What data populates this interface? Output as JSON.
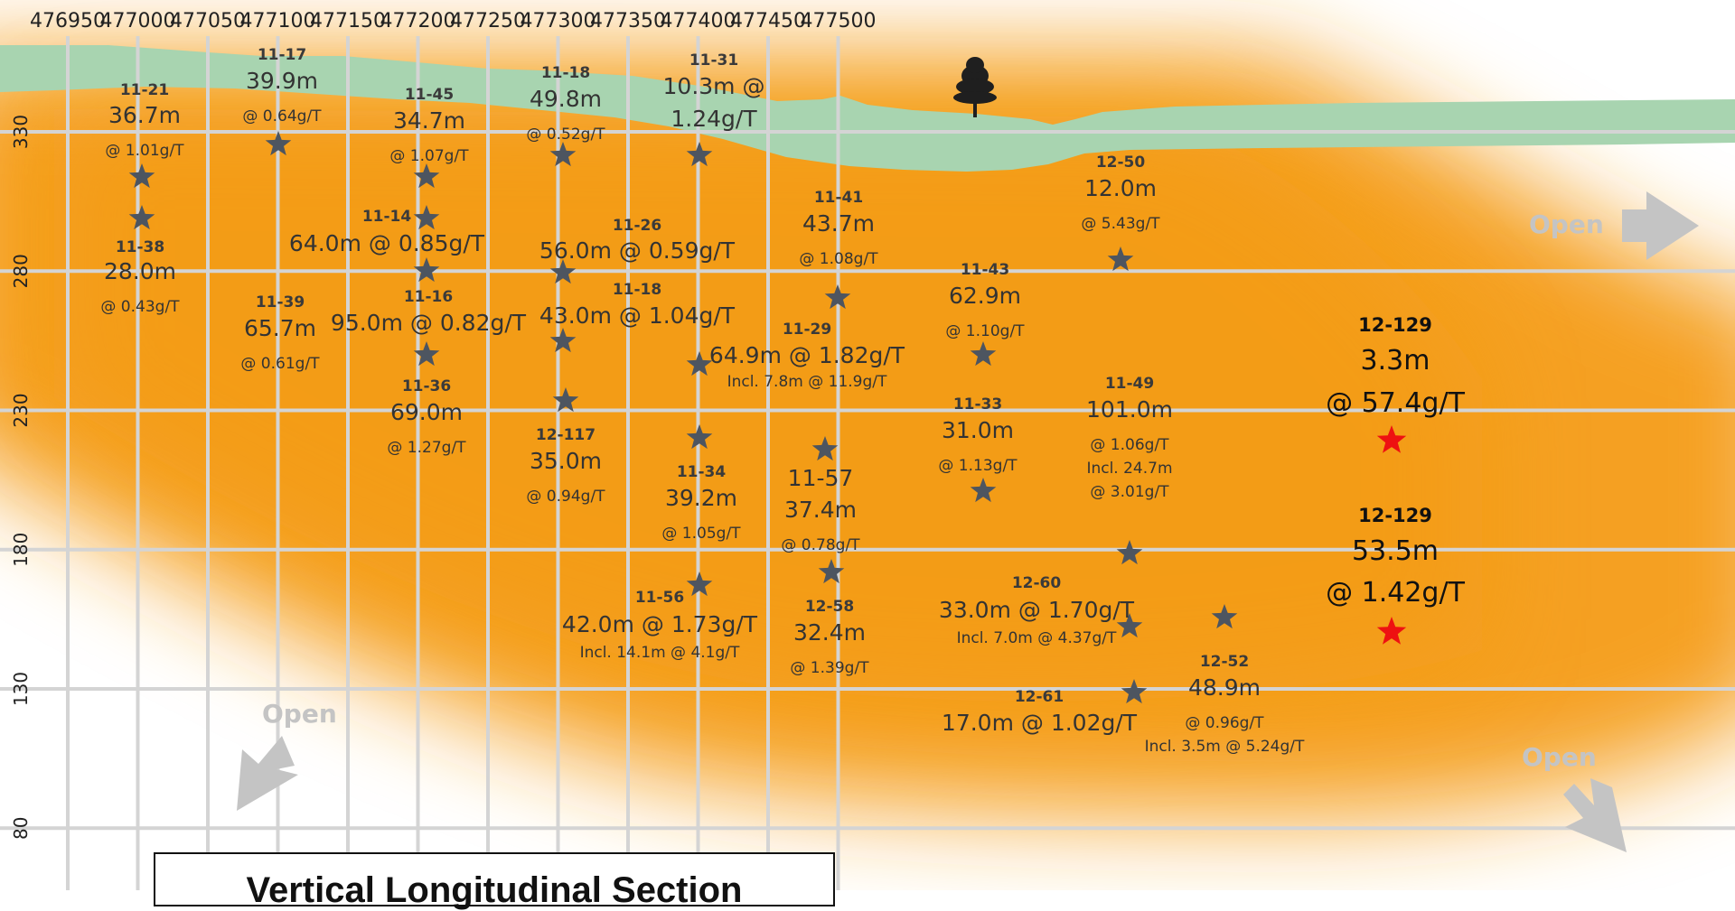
{
  "title": "Vertical Longitudinal Section",
  "x_axis": {
    "ticks": [
      476950,
      477000,
      477050,
      477100,
      477150,
      477200,
      477250,
      477300,
      477350,
      477400,
      477450,
      477500
    ]
  },
  "y_axis": {
    "ticks": [
      330,
      280,
      230,
      180,
      130,
      80
    ]
  },
  "open_label": "Open",
  "colors": {
    "mineralized_zone": "#f5a020",
    "overburden": "#a8d4b0",
    "grid": "#d4d4d4",
    "star": "#4d5560",
    "new_intercept_star": "#ee1111"
  },
  "intercepts": [
    {
      "id": "11-21",
      "lines": [
        "36.7m",
        "@ 1.01g/T"
      ]
    },
    {
      "id": "11-38",
      "lines": [
        "28.0m",
        "@ 0.43g/T"
      ]
    },
    {
      "id": "11-17",
      "lines": [
        "39.9m",
        "@ 0.64g/T"
      ]
    },
    {
      "id": "11-39",
      "lines": [
        "65.7m",
        "@ 0.61g/T"
      ]
    },
    {
      "id": "11-45",
      "lines": [
        "34.7m",
        "@ 1.07g/T"
      ]
    },
    {
      "id": "11-14",
      "lines": [
        "64.0m @ 0.85g/T"
      ]
    },
    {
      "id": "11-16",
      "lines": [
        "95.0m @ 0.82g/T"
      ]
    },
    {
      "id": "11-36",
      "lines": [
        "69.0m",
        "@ 1.27g/T"
      ]
    },
    {
      "id": "11-18",
      "lines": [
        "49.8m",
        "@ 0.52g/T"
      ]
    },
    {
      "id": "11-31",
      "lines": [
        "10.3m @",
        "1.24g/T"
      ]
    },
    {
      "id": "11-26",
      "lines": [
        "56.0m @ 0.59g/T"
      ]
    },
    {
      "id": "11-18",
      "lines": [
        "43.0m @ 1.04g/T"
      ]
    },
    {
      "id": "12-117",
      "lines": [
        "35.0m",
        "@ 0.94g/T"
      ]
    },
    {
      "id": "11-34",
      "lines": [
        "39.2m",
        "@ 1.05g/T"
      ]
    },
    {
      "id": "11-56",
      "lines": [
        "42.0m @ 1.73g/T",
        "Incl.  14.1m @ 4.1g/T"
      ]
    },
    {
      "id": "11-41",
      "lines": [
        "43.7m",
        "@ 1.08g/T"
      ]
    },
    {
      "id": "11-29",
      "lines": [
        "64.9m @ 1.82g/T",
        "Incl. 7.8m @ 11.9g/T"
      ]
    },
    {
      "id": "11-57",
      "lines": [
        "37.4m",
        "@ 0.78g/T"
      ]
    },
    {
      "id": "12-58",
      "lines": [
        "32.4m",
        "@ 1.39g/T"
      ]
    },
    {
      "id": "11-43",
      "lines": [
        "62.9m",
        "@ 1.10g/T"
      ]
    },
    {
      "id": "11-33",
      "lines": [
        "31.0m",
        "@ 1.13g/T"
      ]
    },
    {
      "id": "12-50",
      "lines": [
        "12.0m",
        "@ 5.43g/T"
      ]
    },
    {
      "id": "11-49",
      "lines": [
        "101.0m",
        "@ 1.06g/T",
        "Incl. 24.7m",
        "@ 3.01g/T"
      ]
    },
    {
      "id": "12-60",
      "lines": [
        "33.0m @ 1.70g/T",
        "Incl.  7.0m @ 4.37g/T"
      ]
    },
    {
      "id": "12-61",
      "lines": [
        "17.0m @ 1.02g/T"
      ]
    },
    {
      "id": "12-52",
      "lines": [
        "48.9m",
        "@ 0.96g/T",
        "Incl.  3.5m @ 5.24g/T"
      ]
    },
    {
      "id": "12-129",
      "lines": [
        "3.3m",
        "@ 57.4g/T"
      ]
    },
    {
      "id": "12-129",
      "lines": [
        "53.5m",
        "@ 1.42g/T"
      ]
    }
  ]
}
